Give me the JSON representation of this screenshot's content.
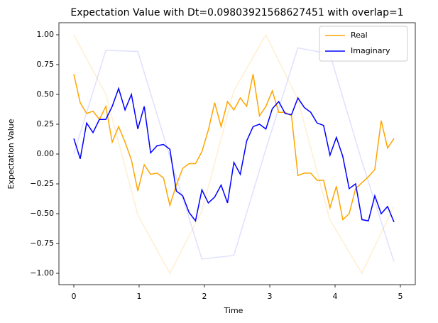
{
  "chart_data": {
    "type": "line",
    "title": "Expectation Value with Dt=0.09803921568627451 with overlap=1",
    "x_label": "Time",
    "y_label": "Expectation Value",
    "x": [
      0,
      0.098,
      0.196,
      0.294,
      0.392,
      0.49,
      0.588,
      0.686,
      0.784,
      0.882,
      0.98,
      1.078,
      1.176,
      1.275,
      1.373,
      1.471,
      1.569,
      1.667,
      1.765,
      1.863,
      1.961,
      2.059,
      2.157,
      2.255,
      2.353,
      2.451,
      2.549,
      2.647,
      2.745,
      2.843,
      2.941,
      3.039,
      3.137,
      3.235,
      3.333,
      3.431,
      3.529,
      3.627,
      3.725,
      3.824,
      3.922,
      4.02,
      4.118,
      4.216,
      4.314,
      4.412,
      4.51,
      4.608,
      4.706,
      4.804,
      4.902
    ],
    "series": [
      {
        "name": "Real",
        "color": "#ffa500",
        "values": [
          0.67,
          0.43,
          0.34,
          0.36,
          0.29,
          0.4,
          0.1,
          0.23,
          0.1,
          -0.05,
          -0.31,
          -0.09,
          -0.17,
          -0.16,
          -0.2,
          -0.43,
          -0.26,
          -0.12,
          -0.08,
          -0.08,
          0.02,
          0.2,
          0.43,
          0.23,
          0.44,
          0.37,
          0.47,
          0.4,
          0.67,
          0.32,
          0.4,
          0.53,
          0.35,
          0.35,
          0.32,
          -0.18,
          -0.16,
          -0.16,
          -0.22,
          -0.22,
          -0.45,
          -0.27,
          -0.55,
          -0.5,
          -0.29,
          -0.24,
          -0.19,
          -0.13,
          0.28,
          0.05,
          0.13
        ]
      },
      {
        "name": "Imaginary",
        "color": "#0000ff",
        "values": [
          0.13,
          -0.04,
          0.26,
          0.18,
          0.29,
          0.29,
          0.4,
          0.55,
          0.37,
          0.5,
          0.21,
          0.4,
          0.01,
          0.07,
          0.08,
          0.04,
          -0.31,
          -0.35,
          -0.49,
          -0.56,
          -0.3,
          -0.41,
          -0.36,
          -0.26,
          -0.41,
          -0.07,
          -0.17,
          0.11,
          0.23,
          0.25,
          0.21,
          0.38,
          0.44,
          0.34,
          0.33,
          0.47,
          0.39,
          0.35,
          0.26,
          0.24,
          -0.01,
          0.14,
          -0.02,
          -0.29,
          -0.25,
          -0.55,
          -0.56,
          -0.35,
          -0.5,
          -0.44,
          -0.57
        ]
      }
    ],
    "background_x": [
      0,
      0.49,
      0.98,
      1.47,
      1.96,
      2.45,
      2.94,
      3.43,
      3.92,
      4.41,
      4.9
    ],
    "background_series": [
      {
        "color": "#ffa500",
        "opacity": 0.18,
        "values": [
          1.0,
          0.5,
          -0.51,
          -1.0,
          -0.48,
          0.53,
          1.0,
          0.46,
          -0.55,
          -1.0,
          -0.44
        ]
      },
      {
        "color": "#0000ff",
        "opacity": 0.12,
        "values": [
          0,
          0.87,
          0.86,
          -0.02,
          -0.88,
          -0.85,
          0.04,
          0.89,
          0.84,
          -0.06,
          -0.9
        ]
      }
    ],
    "xlim": [
      -0.228,
      5.228
    ],
    "ylim": [
      -1.095,
      1.101
    ],
    "xticks": [
      0,
      1,
      2,
      3,
      4,
      5
    ],
    "yticks": [
      {
        "value": 1,
        "label": "1.00"
      },
      {
        "value": 0.75,
        "label": "0.75"
      },
      {
        "value": 0.5,
        "label": "0.50"
      },
      {
        "value": 0.25,
        "label": "0.25"
      },
      {
        "value": 0,
        "label": "0.00"
      },
      {
        "value": -0.25,
        "label": "−0.25"
      },
      {
        "value": -0.5,
        "label": "−0.50"
      },
      {
        "value": -0.75,
        "label": "−0.75"
      },
      {
        "value": -1,
        "label": "−1.00"
      }
    ],
    "legend": "upper right",
    "grid": false
  }
}
